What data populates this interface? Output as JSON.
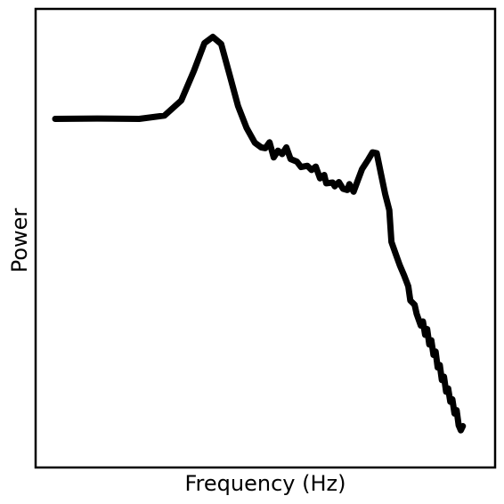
{
  "chart_data": {
    "type": "line",
    "title": "",
    "xlabel": "Frequency (Hz)",
    "ylabel": "Power",
    "x_ticks_shown": false,
    "y_ticks_shown": false,
    "grid": false,
    "legend": "none",
    "scale": "arbitrary",
    "xlim": [
      0,
      1
    ],
    "ylim": [
      0,
      1
    ],
    "series": [
      {
        "color": "#000000",
        "points": [
          [
            0.0,
            0.784
          ],
          [
            0.1,
            0.785
          ],
          [
            0.2,
            0.784
          ],
          [
            0.26,
            0.792
          ],
          [
            0.3,
            0.828
          ],
          [
            0.33,
            0.899
          ],
          [
            0.355,
            0.965
          ],
          [
            0.375,
            0.98
          ],
          [
            0.395,
            0.963
          ],
          [
            0.415,
            0.889
          ],
          [
            0.435,
            0.815
          ],
          [
            0.455,
            0.763
          ],
          [
            0.475,
            0.727
          ],
          [
            0.49,
            0.716
          ],
          [
            0.5,
            0.714
          ],
          [
            0.51,
            0.728
          ],
          [
            0.52,
            0.692
          ],
          [
            0.53,
            0.708
          ],
          [
            0.54,
            0.7
          ],
          [
            0.55,
            0.716
          ],
          [
            0.56,
            0.688
          ],
          [
            0.575,
            0.682
          ],
          [
            0.585,
            0.669
          ],
          [
            0.6,
            0.672
          ],
          [
            0.61,
            0.662
          ],
          [
            0.62,
            0.67
          ],
          [
            0.63,
            0.642
          ],
          [
            0.64,
            0.65
          ],
          [
            0.645,
            0.63
          ],
          [
            0.66,
            0.632
          ],
          [
            0.665,
            0.623
          ],
          [
            0.675,
            0.633
          ],
          [
            0.685,
            0.617
          ],
          [
            0.695,
            0.614
          ],
          [
            0.7,
            0.628
          ],
          [
            0.71,
            0.61
          ],
          [
            0.72,
            0.637
          ],
          [
            0.73,
            0.664
          ],
          [
            0.745,
            0.687
          ],
          [
            0.755,
            0.704
          ],
          [
            0.765,
            0.702
          ],
          [
            0.775,
            0.653
          ],
          [
            0.785,
            0.605
          ],
          [
            0.795,
            0.566
          ],
          [
            0.8,
            0.49
          ],
          [
            0.81,
            0.462
          ],
          [
            0.82,
            0.434
          ],
          [
            0.83,
            0.41
          ],
          [
            0.84,
            0.384
          ],
          [
            0.845,
            0.35
          ],
          [
            0.855,
            0.34
          ],
          [
            0.86,
            0.318
          ],
          [
            0.87,
            0.29
          ],
          [
            0.875,
            0.3
          ],
          [
            0.88,
            0.268
          ],
          [
            0.885,
            0.282
          ],
          [
            0.89,
            0.245
          ],
          [
            0.895,
            0.255
          ],
          [
            0.9,
            0.22
          ],
          [
            0.905,
            0.228
          ],
          [
            0.91,
            0.19
          ],
          [
            0.915,
            0.196
          ],
          [
            0.92,
            0.16
          ],
          [
            0.925,
            0.168
          ],
          [
            0.93,
            0.132
          ],
          [
            0.935,
            0.14
          ],
          [
            0.94,
            0.108
          ],
          [
            0.945,
            0.114
          ],
          [
            0.95,
            0.08
          ],
          [
            0.955,
            0.088
          ],
          [
            0.96,
            0.052
          ],
          [
            0.965,
            0.04
          ],
          [
            0.97,
            0.05
          ]
        ]
      }
    ]
  }
}
